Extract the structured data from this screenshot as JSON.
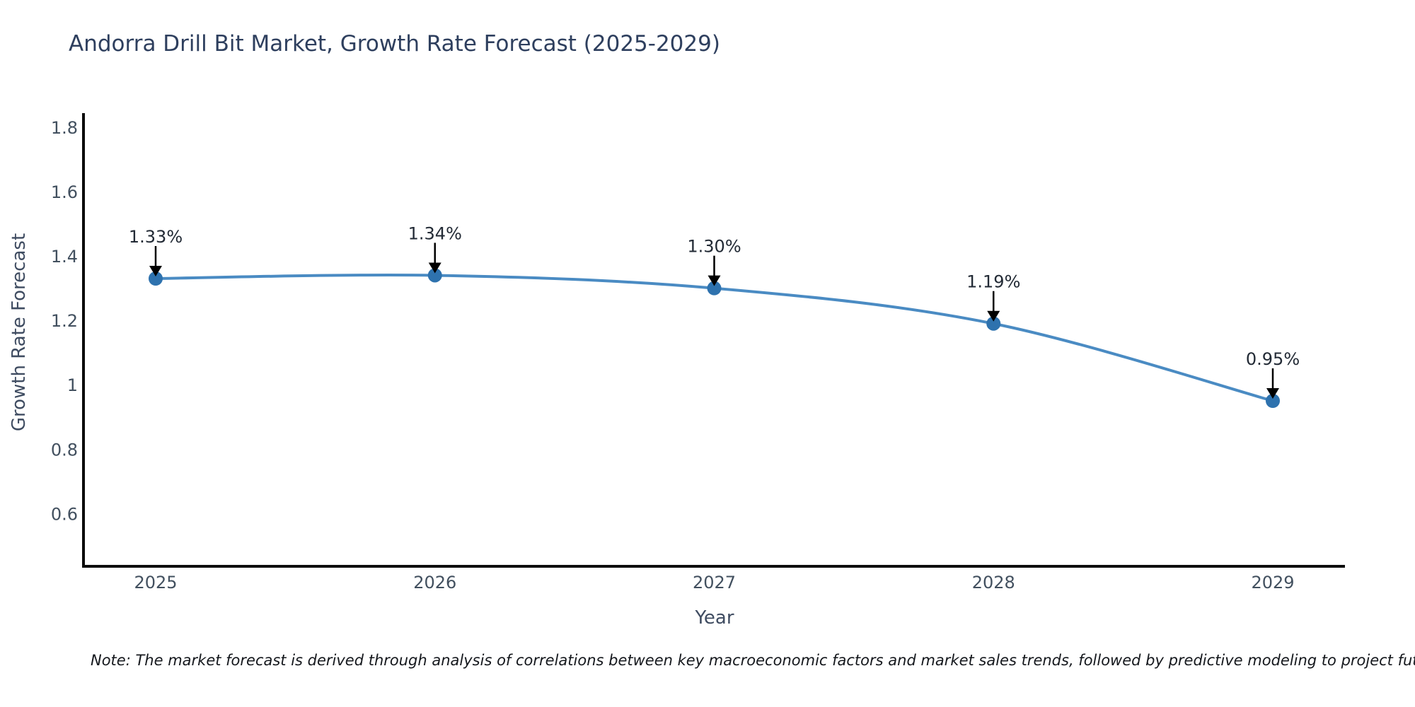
{
  "title": "Andorra Drill Bit Market, Growth Rate Forecast (2025-2029)",
  "note": "Note: The market forecast is derived through analysis of correlations between key macroeconomic factors and market sales trends, followed by predictive modeling to project future sales",
  "chart_data": {
    "type": "line",
    "title": "Andorra Drill Bit Market, Growth Rate Forecast (2025-2029)",
    "xlabel": "Year",
    "ylabel": "Growth Rate Forecast",
    "categories": [
      "2025",
      "2026",
      "2027",
      "2028",
      "2029"
    ],
    "series": [
      {
        "name": "Growth Rate Forecast",
        "values": [
          1.33,
          1.34,
          1.3,
          1.19,
          0.95
        ]
      }
    ],
    "point_labels": [
      "1.33%",
      "1.34%",
      "1.30%",
      "1.19%",
      "0.95%"
    ],
    "y_ticks": [
      0.6,
      0.8,
      1,
      1.2,
      1.4,
      1.6,
      1.8
    ],
    "ylim": [
      0.436,
      1.844
    ],
    "grid": false,
    "legend": "none",
    "line_style": "smooth",
    "marker": "circle",
    "annotation_arrows": true,
    "colors": {
      "line": "#4a8bc3",
      "marker": "#2e72ae",
      "arrow": "#000000",
      "axis": "#0b0b0b",
      "title_text": "#2e3f5e",
      "tick_text": "#42505f",
      "label_text": "#222a35",
      "background": "#ffffff"
    }
  }
}
